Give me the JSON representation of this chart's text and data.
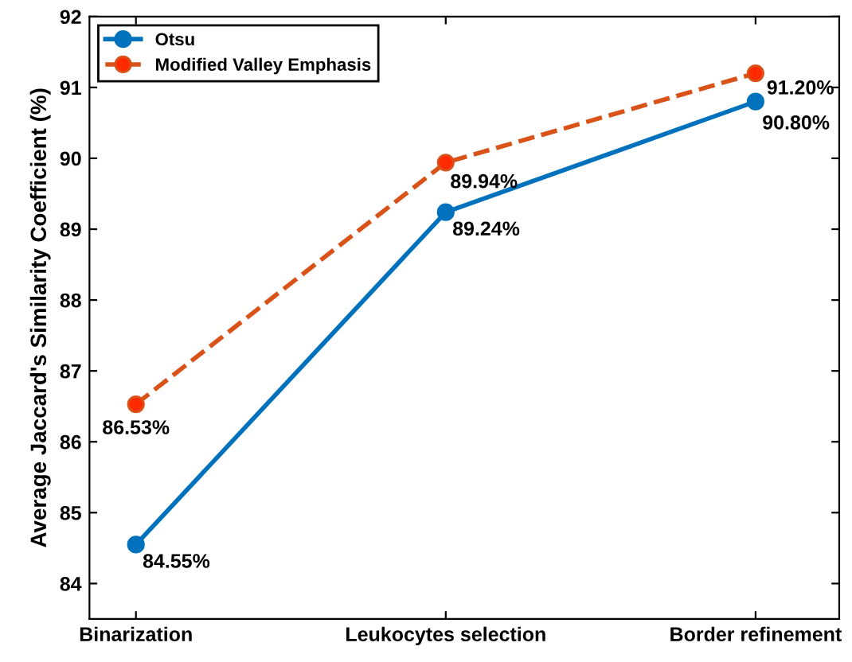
{
  "chart_data": {
    "type": "line",
    "ylabel": "Average Jaccard's Similarity Coefficient (%)",
    "categories": [
      "Binarization",
      "Leukocytes selection",
      "Border refinement"
    ],
    "series": [
      {
        "name": "Otsu",
        "color": "#0072bd",
        "values": [
          84.55,
          89.24,
          90.8
        ],
        "value_labels": [
          "84.55%",
          "89.24%",
          "90.80%"
        ],
        "marker": "circle",
        "line_style": "solid"
      },
      {
        "name": "Modified Valley Emphasis",
        "color": "#d95319",
        "values": [
          86.53,
          89.94,
          91.2
        ],
        "value_labels": [
          "86.53%",
          "89.94%",
          "91.20%"
        ],
        "marker": "circle",
        "line_style": "dashed"
      }
    ],
    "ylim": [
      83.5,
      92
    ],
    "yticks": [
      84,
      85,
      86,
      87,
      88,
      89,
      90,
      91,
      92
    ],
    "grid": false,
    "legend": "top left"
  }
}
